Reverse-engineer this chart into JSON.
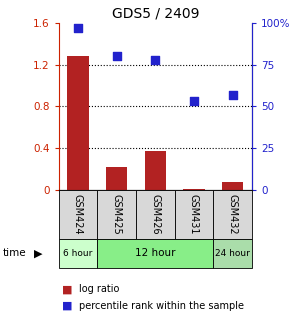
{
  "title": "GDS5 / 2409",
  "samples": [
    "GSM424",
    "GSM425",
    "GSM426",
    "GSM431",
    "GSM432"
  ],
  "log_ratio": [
    1.28,
    0.22,
    0.37,
    0.01,
    0.07
  ],
  "percentile_rank": [
    97,
    80,
    78,
    53,
    57
  ],
  "bar_color": "#b22222",
  "scatter_color": "#2222cc",
  "ylim_left": [
    0,
    1.6
  ],
  "ylim_right": [
    0,
    100
  ],
  "yticks_left": [
    0,
    0.4,
    0.8,
    1.2,
    1.6
  ],
  "ytick_labels_left": [
    "0",
    "0.4",
    "0.8",
    "1.2",
    "1.6"
  ],
  "yticks_right": [
    0,
    25,
    50,
    75,
    100
  ],
  "ytick_labels_right": [
    "0",
    "25",
    "50",
    "75",
    "100%"
  ],
  "dotted_yticks": [
    0.4,
    0.8,
    1.2
  ],
  "time_groups": [
    {
      "label": "6 hour",
      "count": 1,
      "color": "#ccffcc"
    },
    {
      "label": "12 hour",
      "count": 3,
      "color": "#88ee88"
    },
    {
      "label": "24 hour",
      "count": 1,
      "color": "#aaddaa"
    }
  ],
  "legend_log_ratio_label": "log ratio",
  "legend_percentile_label": "percentile rank within the sample",
  "time_label": "time",
  "sample_box_color": "#d8d8d8",
  "figsize": [
    2.93,
    3.27
  ],
  "dpi": 100
}
